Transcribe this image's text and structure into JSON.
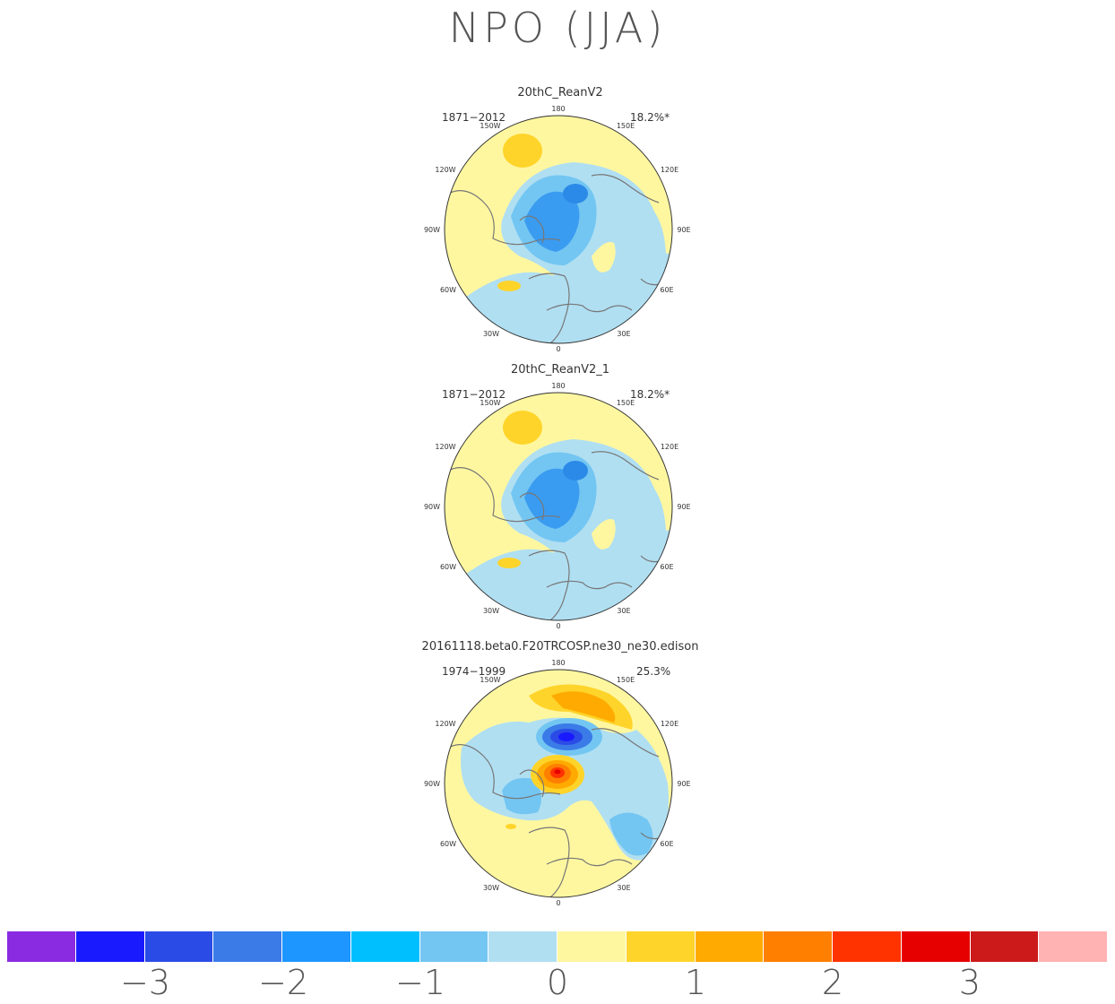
{
  "title": "NPO (JJA)",
  "panels": [
    {
      "name": "20thC_ReanV2",
      "period": "1871-2012",
      "variance": "18.2%*"
    },
    {
      "name": "20thC_ReanV2_1",
      "period": "1871-2012",
      "variance": "18.2%*"
    },
    {
      "name": "20161118.beta0.F20TRCOSP.ne30_ne30.edison",
      "period": "1974-1999",
      "variance": "25.3%"
    }
  ],
  "longitude_labels": {
    "top": "180",
    "top_left": "150W",
    "top_right": "150E",
    "upper_left": "120W",
    "upper_right": "120E",
    "left": "90W",
    "right": "90E",
    "lower_left": "60W",
    "lower_right": "60E",
    "bottom_left": "30W",
    "bottom_right": "30E",
    "bottom": "0"
  },
  "colorbar": {
    "colors": [
      "#8a2be2",
      "#1a1aff",
      "#2b4be6",
      "#3a7be8",
      "#1e96ff",
      "#00bfff",
      "#73c6f2",
      "#b0dff2",
      "#fff7a0",
      "#ffd42a",
      "#ffaa00",
      "#ff7f00",
      "#ff3300",
      "#e60000",
      "#cc1a1a",
      "#ffb3b3"
    ],
    "tick_labels": [
      "-3",
      "-2",
      "-1",
      "0",
      "1",
      "2",
      "3"
    ]
  }
}
